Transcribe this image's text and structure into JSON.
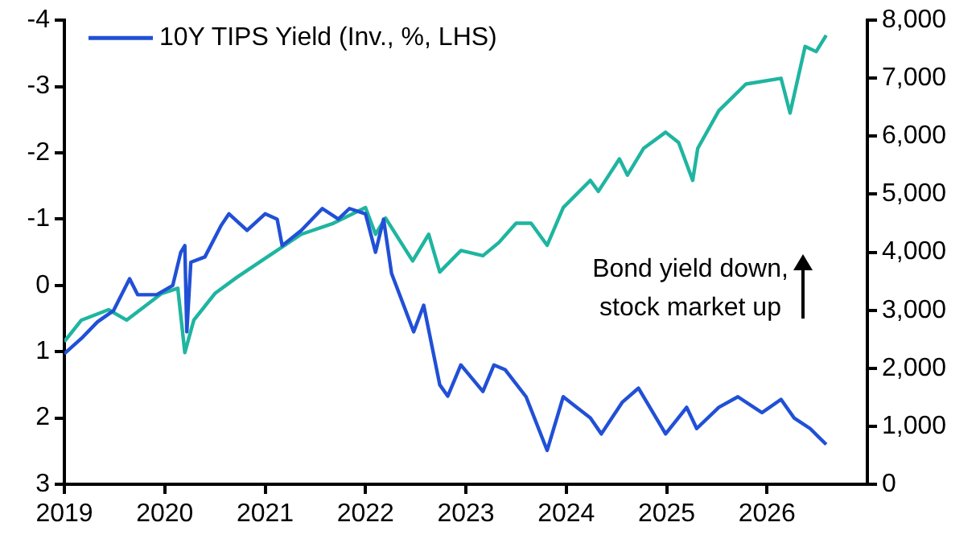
{
  "chart_data": {
    "type": "line",
    "annotations": [
      "Bond yield down, stock market up"
    ],
    "xlim": [
      2019,
      2027
    ],
    "xticks": [
      2019,
      2020,
      2021,
      2022,
      2023,
      2024,
      2025,
      2026
    ],
    "ylim": [
      3,
      -4
    ],
    "yticks": [
      -4,
      -3,
      -2,
      -1,
      0,
      1,
      2,
      3
    ],
    "y2lim": [
      0,
      8000
    ],
    "y2ticks": [
      0,
      {
        "value": 1000,
        "label": "1,000"
      },
      {
        "value": 2000,
        "label": "2,000"
      },
      {
        "value": 3000,
        "label": "3,000"
      },
      {
        "value": 4000,
        "label": "4,000"
      },
      {
        "value": 5000,
        "label": "5,000"
      },
      {
        "value": 6000,
        "label": "6,000"
      },
      {
        "value": 7000,
        "label": "7,000"
      },
      {
        "value": 8000,
        "label": "8,000"
      }
    ],
    "grid": false,
    "legend": "top left",
    "marker": "none",
    "line_style": "solid",
    "series": [
      {
        "name": "10Y TIPS Yield (Inv., %, LHS)",
        "color": "#2150d6",
        "x": [
          2019.0,
          2019.17,
          2019.33,
          2019.49,
          2019.65,
          2019.73,
          2019.92,
          2020.08,
          2020.16,
          2020.2,
          2020.22,
          2020.26,
          2020.4,
          2020.56,
          2020.64,
          2020.82,
          2021.0,
          2021.12,
          2021.17,
          2021.36,
          2021.57,
          2021.73,
          2021.84,
          2022.0,
          2022.1,
          2022.18,
          2022.26,
          2022.34,
          2022.48,
          2022.58,
          2022.74,
          2022.82,
          2022.95,
          2023.17,
          2023.28,
          2023.39,
          2023.6,
          2023.81,
          2023.97,
          2024.24,
          2024.35,
          2024.56,
          2024.72,
          2024.99,
          2025.2,
          2025.3,
          2025.52,
          2025.71,
          2025.95,
          2026.14,
          2026.27,
          2026.43,
          2026.59
        ],
        "values": [
          1.03,
          0.8,
          0.55,
          0.38,
          -0.1,
          0.14,
          0.14,
          0,
          -0.5,
          -0.6,
          0.7,
          -0.35,
          -0.43,
          -0.9,
          -1.08,
          -0.83,
          -1.08,
          -1.0,
          -0.6,
          -0.83,
          -1.16,
          -1.0,
          -1.16,
          -1.08,
          -0.5,
          -1.0,
          -0.18,
          0.14,
          0.7,
          0.3,
          1.5,
          1.67,
          1.2,
          1.6,
          1.2,
          1.27,
          1.68,
          2.49,
          1.68,
          2.0,
          2.24,
          1.76,
          1.55,
          2.24,
          1.84,
          2.16,
          1.84,
          1.68,
          1.92,
          1.72,
          2.0,
          2.16,
          2.4
        ]
      },
      {
        "axis": "y2",
        "color": "#1fb5a0",
        "x": [
          2019.0,
          2019.17,
          2019.44,
          2019.62,
          2019.97,
          2020.13,
          2020.2,
          2020.29,
          2020.5,
          2020.72,
          2021.04,
          2021.36,
          2021.68,
          2022.0,
          2022.1,
          2022.2,
          2022.47,
          2022.63,
          2022.74,
          2022.95,
          2023.17,
          2023.33,
          2023.5,
          2023.65,
          2023.81,
          2023.97,
          2024.24,
          2024.32,
          2024.53,
          2024.61,
          2024.77,
          2024.99,
          2025.12,
          2025.26,
          2025.31,
          2025.52,
          2025.79,
          2026.14,
          2026.23,
          2026.38,
          2026.49,
          2026.59
        ],
        "values": [
          2460,
          2830,
          3010,
          2830,
          3290,
          3380,
          2270,
          2830,
          3290,
          3570,
          3940,
          4310,
          4500,
          4770,
          4310,
          4590,
          3850,
          4310,
          3660,
          4030,
          3940,
          4170,
          4500,
          4500,
          4120,
          4770,
          5240,
          5050,
          5610,
          5330,
          5790,
          6070,
          5890,
          5240,
          5790,
          6440,
          6900,
          7000,
          6400,
          7550,
          7460,
          7740
        ]
      }
    ]
  }
}
